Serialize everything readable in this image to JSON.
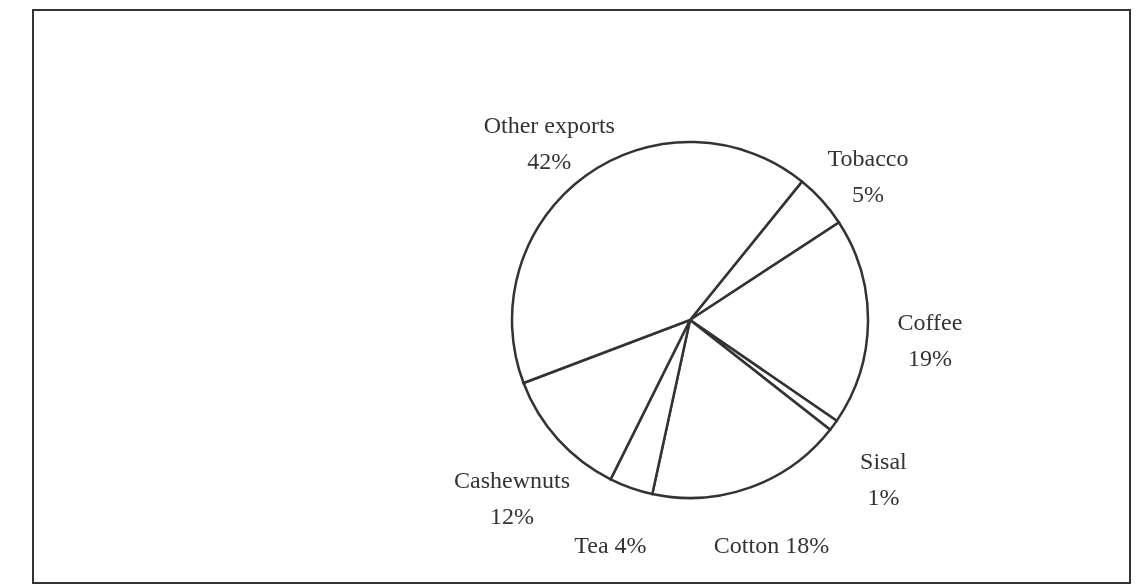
{
  "chart_data": {
    "type": "pie",
    "categories": [
      "Tobacco",
      "Coffee",
      "Sisal",
      "Cotton",
      "Tea",
      "Cashewnuts",
      "Other exports"
    ],
    "values": [
      5,
      19,
      1,
      18,
      4,
      12,
      42
    ],
    "value_labels": [
      "5%",
      "19%",
      "1%",
      "18%",
      "4%",
      "12%",
      "42%"
    ],
    "colors": [
      "#ffffff",
      "#ffffff",
      "#ffffff",
      "#ffffff",
      "#ffffff",
      "#ffffff",
      "#ffffff"
    ]
  }
}
